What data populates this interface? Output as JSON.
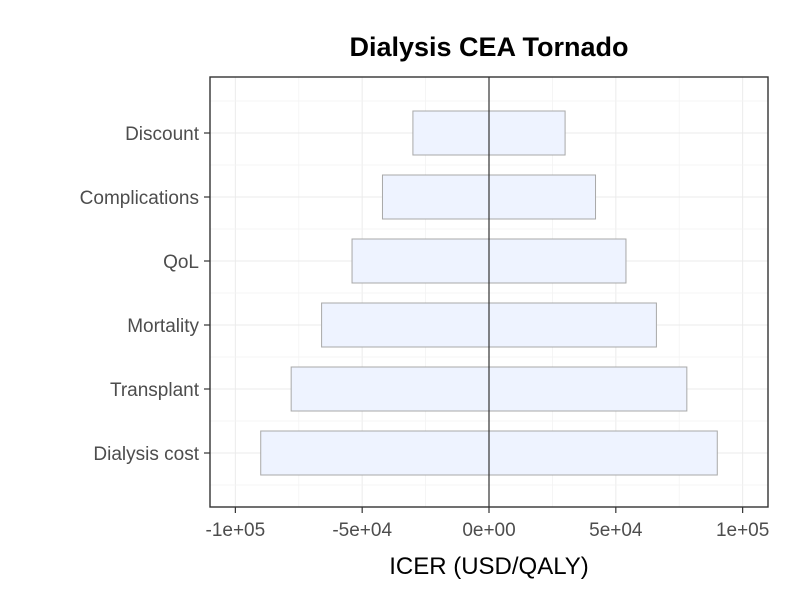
{
  "chart_data": {
    "type": "bar",
    "orientation": "horizontal",
    "title": "Dialysis CEA Tornado",
    "xlabel": "ICER (USD/QALY)",
    "ylabel": "",
    "xlim": [
      -110000,
      110000
    ],
    "x_ticks": [
      -100000,
      -50000,
      0,
      50000,
      100000
    ],
    "x_tick_labels": [
      "-1e+05",
      "-5e+04",
      "0e+00",
      "5e+04",
      "1e+05"
    ],
    "reference_line": 0,
    "grid": true,
    "bar_fill": "#eef3ff",
    "bar_border": "#a8a8a8",
    "categories": [
      "Discount",
      "Complications",
      "QoL",
      "Mortality",
      "Transplant",
      "Dialysis cost"
    ],
    "low": [
      -30000,
      -42000,
      -54000,
      -66000,
      -78000,
      -90000
    ],
    "high": [
      30000,
      42000,
      54000,
      66000,
      78000,
      90000
    ]
  }
}
